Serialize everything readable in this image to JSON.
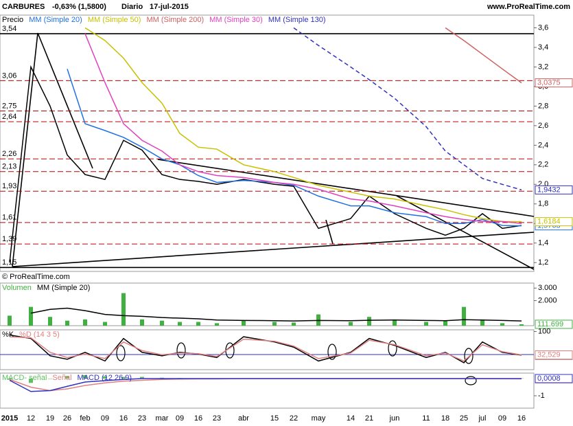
{
  "header": {
    "symbol": "CARBURES",
    "change": "-0,63% (1,5800)",
    "period": "Diario",
    "date": "17-jul-2015",
    "site": "www.ProRealTime.com",
    "copyright": "© ProRealTime.com"
  },
  "chart_data": [
    {
      "type": "line",
      "ylim": [
        1.11,
        3.73
      ],
      "yticks": [
        {
          "value": 3.6,
          "label": "3,6"
        },
        {
          "value": 3.4,
          "label": "3,4"
        },
        {
          "value": 3.2,
          "label": "3,2"
        },
        {
          "value": 3.0,
          "label": "3,0"
        },
        {
          "value": 2.8,
          "label": "2,8"
        },
        {
          "value": 2.6,
          "label": "2,6"
        },
        {
          "value": 2.4,
          "label": "2,4"
        },
        {
          "value": 2.2,
          "label": "2,2"
        },
        {
          "value": 2.0,
          "label": "2,0"
        },
        {
          "value": 1.8,
          "label": "1,8"
        },
        {
          "value": 1.6,
          "label": "1,6"
        },
        {
          "value": 1.4,
          "label": "1,4"
        },
        {
          "value": 1.2,
          "label": "1,2"
        }
      ],
      "levels": [
        {
          "value": 3.54,
          "label": "3,54"
        },
        {
          "value": 3.06,
          "label": "3,06"
        },
        {
          "value": 2.75,
          "label": "2,75"
        },
        {
          "value": 2.64,
          "label": "2,64"
        },
        {
          "value": 2.26,
          "label": "2,26"
        },
        {
          "value": 2.13,
          "label": "2,13"
        },
        {
          "value": 1.93,
          "label": "1,93"
        },
        {
          "value": 1.61,
          "label": "1,61"
        },
        {
          "value": 1.39,
          "label": "1,39"
        },
        {
          "value": 1.15,
          "label": "1,15"
        }
      ],
      "series": [
        {
          "name": "Precio",
          "color": "#000000",
          "values": [
            1.2,
            3.2,
            2.8,
            2.3,
            2.1,
            2.05,
            2.45,
            2.35,
            2.1,
            2.05,
            2.03,
            2.0,
            2.05,
            2.0,
            1.98,
            1.55,
            1.65,
            1.88,
            1.7,
            1.55,
            1.48,
            1.55,
            1.7,
            1.55,
            1.58
          ],
          "value_labels": [
            null,
            null,
            null,
            null,
            null,
            null,
            null,
            null,
            null,
            null,
            null,
            null,
            null,
            null,
            null,
            null,
            null,
            null,
            null,
            null,
            null,
            null,
            null,
            null,
            "1,5800"
          ]
        },
        {
          "name": "MM (Simple 20)",
          "color": "#2070e0",
          "values": [
            null,
            null,
            null,
            3.18,
            2.62,
            2.55,
            2.48,
            2.38,
            2.26,
            2.2,
            2.09,
            2.02,
            2.04,
            2.02,
            1.99,
            1.88,
            1.78,
            1.78,
            1.71,
            1.67,
            1.6,
            1.6,
            1.64,
            1.58,
            1.5763
          ],
          "value_labels": [
            null,
            null,
            null,
            null,
            null,
            null,
            null,
            null,
            null,
            null,
            null,
            null,
            null,
            null,
            null,
            null,
            null,
            null,
            null,
            null,
            null,
            null,
            null,
            null,
            "1,5763"
          ]
        },
        {
          "name": "MM (Simple 50)",
          "color": "#c8c000",
          "values": [
            null,
            null,
            null,
            null,
            3.6,
            3.47,
            3.29,
            3.04,
            2.83,
            2.52,
            2.38,
            2.36,
            2.2,
            2.13,
            2.07,
            1.99,
            1.92,
            1.88,
            1.85,
            1.78,
            1.74,
            1.69,
            1.65,
            1.62,
            1.6184
          ],
          "value_labels": [
            null,
            null,
            null,
            null,
            null,
            null,
            null,
            null,
            null,
            null,
            null,
            null,
            null,
            null,
            null,
            null,
            null,
            null,
            null,
            null,
            null,
            null,
            null,
            null,
            "1,6184"
          ]
        },
        {
          "name": "MM (Simple 200)",
          "color": "#d06060",
          "values": [
            null,
            null,
            null,
            null,
            null,
            null,
            null,
            null,
            null,
            null,
            null,
            null,
            null,
            null,
            null,
            null,
            null,
            null,
            null,
            null,
            3.6,
            3.47,
            3.33,
            3.18,
            3.0375
          ],
          "value_labels": [
            null,
            null,
            null,
            null,
            null,
            null,
            null,
            null,
            null,
            null,
            null,
            null,
            null,
            null,
            null,
            null,
            null,
            null,
            null,
            null,
            null,
            null,
            null,
            null,
            "3,0375"
          ]
        },
        {
          "name": "MM (Simple 30)",
          "color": "#e040c0",
          "values": [
            null,
            null,
            null,
            null,
            3.54,
            3.04,
            2.62,
            2.45,
            2.34,
            2.2,
            2.13,
            2.09,
            2.07,
            2.02,
            2.0,
            1.95,
            1.85,
            1.83,
            1.78,
            1.71,
            1.67,
            1.64,
            1.62,
            1.62,
            1.6
          ]
        },
        {
          "name": "MM (Simple 130)",
          "color": "#3030c0",
          "style": "dashed",
          "values": [
            null,
            null,
            null,
            null,
            null,
            null,
            null,
            null,
            null,
            null,
            null,
            null,
            null,
            null,
            3.6,
            3.42,
            3.2,
            3.07,
            2.88,
            2.59,
            2.34,
            2.2,
            2.06,
            2.0,
            1.9432
          ],
          "value_labels": [
            null,
            null,
            null,
            null,
            null,
            null,
            null,
            null,
            null,
            null,
            null,
            null,
            null,
            null,
            null,
            null,
            null,
            null,
            null,
            null,
            null,
            null,
            null,
            null,
            "1,9432"
          ]
        }
      ]
    },
    {
      "type": "bar",
      "ylim": [
        0,
        3400
      ],
      "yticks": [
        {
          "value": 3000,
          "label": "3.000"
        },
        {
          "value": 2000,
          "label": "2.000"
        }
      ],
      "series": [
        {
          "name": "Volumen",
          "color": "#40b040",
          "type": "bar",
          "values": [
            800,
            1500,
            700,
            400,
            500,
            300,
            2600,
            500,
            400,
            300,
            300,
            200,
            400,
            300,
            250,
            900,
            300,
            700,
            500,
            300,
            400,
            1500,
            500,
            200,
            111.699
          ],
          "value_labels": [
            null,
            null,
            null,
            null,
            null,
            null,
            null,
            null,
            null,
            null,
            null,
            null,
            null,
            null,
            null,
            null,
            null,
            null,
            null,
            null,
            null,
            null,
            null,
            null,
            "111.699"
          ]
        },
        {
          "name": "MM (Simple 20)",
          "color": "#000000",
          "type": "line",
          "values": [
            null,
            1000,
            1300,
            1400,
            1200,
            900,
            800,
            750,
            650,
            600,
            550,
            450,
            420,
            400,
            380,
            420,
            400,
            430,
            450,
            420,
            400,
            480,
            450,
            420,
            380
          ]
        }
      ]
    },
    {
      "type": "line",
      "ylim": [
        -10,
        105
      ],
      "yticks": [
        100
      ],
      "series": [
        {
          "name": "%K",
          "color": "#000000",
          "values": [
            90,
            80,
            30,
            20,
            40,
            15,
            80,
            40,
            30,
            40,
            35,
            25,
            85,
            70,
            55,
            15,
            40,
            80,
            60,
            25,
            40,
            10,
            70,
            40,
            31.958
          ],
          "value_labels": [
            null,
            null,
            null,
            null,
            null,
            null,
            null,
            null,
            null,
            null,
            null,
            null,
            null,
            null,
            null,
            null,
            null,
            null,
            null,
            null,
            null,
            null,
            null,
            null,
            "31,958"
          ]
        },
        {
          "name": "%D (14 3 5)",
          "color": "#e08080",
          "values": [
            85,
            82,
            40,
            25,
            35,
            22,
            70,
            45,
            33,
            38,
            36,
            28,
            78,
            72,
            58,
            22,
            38,
            75,
            62,
            30,
            38,
            15,
            62,
            42,
            32.529
          ],
          "value_labels": [
            null,
            null,
            null,
            null,
            null,
            null,
            null,
            null,
            null,
            null,
            null,
            null,
            null,
            null,
            null,
            null,
            null,
            null,
            null,
            null,
            null,
            null,
            null,
            null,
            "32,529"
          ]
        }
      ]
    },
    {
      "type": "line",
      "ylim": [
        -1.72,
        0.32
      ],
      "yticks": [
        {
          "value": -1,
          "label": "-1"
        }
      ],
      "categories": [
        "2015",
        "12",
        "19",
        "26",
        "feb",
        "09",
        "16",
        "23",
        "mar",
        "09",
        "16",
        "23",
        "abr",
        "15",
        "22",
        "may",
        "14",
        "21",
        "jun",
        "11",
        "18",
        "25",
        "jul",
        "09",
        "16"
      ],
      "series": [
        {
          "name": "MACD- señal",
          "color": "#60c060",
          "type": "bar",
          "values": [
            -0.05,
            -0.25,
            0,
            0.15,
            0.2,
            0.13,
            0.1,
            0.1,
            0.05,
            0.03,
            0.02,
            0.02,
            0,
            0,
            0,
            0,
            0,
            0,
            0,
            0,
            0,
            0,
            0,
            0.01,
            0.0158
          ]
        },
        {
          "name": "Señal",
          "color": "#e08080",
          "type": "line",
          "values": [
            -0.05,
            -0.5,
            -0.7,
            -0.6,
            -0.4,
            -0.25,
            -0.15,
            -0.1,
            -0.05,
            -0.03,
            -0.02,
            -0.02,
            0,
            0,
            0,
            0,
            0,
            0,
            0,
            0,
            0,
            0,
            0,
            -0.01,
            -0.015
          ],
          "value_labels": [
            null,
            null,
            null,
            null,
            null,
            null,
            null,
            null,
            null,
            null,
            null,
            null,
            null,
            null,
            null,
            null,
            null,
            null,
            null,
            null,
            null,
            null,
            null,
            null,
            "-0,0150"
          ]
        },
        {
          "name": "MACD (12 26 9)",
          "color": "#3030c0",
          "type": "line",
          "values": [
            -0.1,
            -0.75,
            -0.7,
            -0.45,
            -0.2,
            -0.12,
            -0.05,
            0,
            0,
            0,
            0,
            0,
            0,
            0,
            0,
            0,
            0,
            0,
            0,
            0,
            0,
            0,
            0,
            0,
            0.0008
          ],
          "value_labels": [
            null,
            null,
            null,
            null,
            null,
            null,
            null,
            null,
            null,
            null,
            null,
            null,
            null,
            null,
            null,
            null,
            null,
            null,
            null,
            null,
            null,
            null,
            null,
            null,
            "0,0008"
          ]
        }
      ]
    }
  ]
}
